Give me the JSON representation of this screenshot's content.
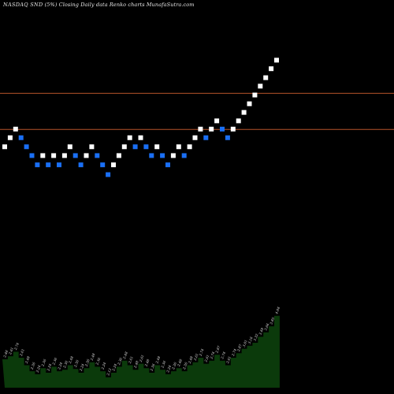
{
  "chart_data": {
    "type": "renko",
    "title": "NASDAQ SND",
    "title_suffix": "Closing Daily data Renko charts MunafaSutra.com",
    "title_sep": "(5%)",
    "bricks": [
      {
        "v": 2.48,
        "dir": "up"
      },
      {
        "v": 2.61,
        "dir": "up"
      },
      {
        "v": 2.74,
        "dir": "up"
      },
      {
        "v": 2.61,
        "dir": "down"
      },
      {
        "v": 2.48,
        "dir": "down"
      },
      {
        "v": 2.36,
        "dir": "down"
      },
      {
        "v": 2.24,
        "dir": "down"
      },
      {
        "v": 2.36,
        "dir": "up"
      },
      {
        "v": 2.24,
        "dir": "down"
      },
      {
        "v": 2.36,
        "dir": "up"
      },
      {
        "v": 2.24,
        "dir": "down"
      },
      {
        "v": 2.36,
        "dir": "up"
      },
      {
        "v": 2.48,
        "dir": "up"
      },
      {
        "v": 2.36,
        "dir": "down"
      },
      {
        "v": 2.24,
        "dir": "down"
      },
      {
        "v": 2.36,
        "dir": "up"
      },
      {
        "v": 2.48,
        "dir": "up"
      },
      {
        "v": 2.36,
        "dir": "down"
      },
      {
        "v": 2.24,
        "dir": "down"
      },
      {
        "v": 2.12,
        "dir": "down"
      },
      {
        "v": 2.24,
        "dir": "up"
      },
      {
        "v": 2.36,
        "dir": "up"
      },
      {
        "v": 2.48,
        "dir": "up"
      },
      {
        "v": 2.61,
        "dir": "up"
      },
      {
        "v": 2.48,
        "dir": "down"
      },
      {
        "v": 2.61,
        "dir": "up"
      },
      {
        "v": 2.48,
        "dir": "down"
      },
      {
        "v": 2.36,
        "dir": "down"
      },
      {
        "v": 2.48,
        "dir": "up"
      },
      {
        "v": 2.36,
        "dir": "down"
      },
      {
        "v": 2.24,
        "dir": "down"
      },
      {
        "v": 2.36,
        "dir": "up"
      },
      {
        "v": 2.48,
        "dir": "up"
      },
      {
        "v": 2.36,
        "dir": "down"
      },
      {
        "v": 2.48,
        "dir": "up"
      },
      {
        "v": 2.61,
        "dir": "up"
      },
      {
        "v": 2.74,
        "dir": "up"
      },
      {
        "v": 2.61,
        "dir": "down"
      },
      {
        "v": 2.74,
        "dir": "up"
      },
      {
        "v": 2.87,
        "dir": "up"
      },
      {
        "v": 2.74,
        "dir": "down"
      },
      {
        "v": 2.61,
        "dir": "down"
      },
      {
        "v": 2.74,
        "dir": "up"
      },
      {
        "v": 2.87,
        "dir": "up"
      },
      {
        "v": 3.01,
        "dir": "up"
      },
      {
        "v": 3.16,
        "dir": "up"
      },
      {
        "v": 3.32,
        "dir": "up"
      },
      {
        "v": 3.49,
        "dir": "up"
      },
      {
        "v": 3.66,
        "dir": "up"
      },
      {
        "v": 3.85,
        "dir": "up"
      },
      {
        "v": 4.04,
        "dir": "up"
      }
    ],
    "ylim": [
      1.5,
      5.2
    ],
    "hlines": [
      3.36,
      2.74
    ],
    "volume_labels": [
      "2.48",
      "2.61",
      "2.74",
      "2.61",
      "2.48",
      "2.36",
      "2.24",
      "2.36",
      "2.24",
      "2.36",
      "2.24",
      "2.36",
      "2.48",
      "2.36",
      "2.24",
      "2.36",
      "2.48",
      "2.36",
      "2.24",
      "2.12",
      "2.24",
      "2.36",
      "2.48",
      "2.61",
      "2.48",
      "2.61",
      "2.48",
      "2.36",
      "2.48",
      "2.36",
      "2.24",
      "2.36",
      "2.48",
      "2.36",
      "2.48",
      "2.61",
      "2.74",
      "2.61",
      "2.74",
      "2.87",
      "2.74",
      "2.61",
      "2.74",
      "2.87",
      "3.01",
      "3.16",
      "3.32",
      "3.49",
      "3.66",
      "3.85",
      "4.04"
    ],
    "volume_values": [
      38,
      42,
      48,
      40,
      30,
      22,
      18,
      26,
      20,
      28,
      22,
      24,
      30,
      25,
      20,
      26,
      34,
      28,
      22,
      14,
      20,
      28,
      36,
      30,
      24,
      32,
      26,
      20,
      30,
      24,
      18,
      22,
      26,
      22,
      30,
      34,
      40,
      32,
      36,
      44,
      36,
      30,
      40,
      46,
      52,
      56,
      60,
      68,
      74,
      82,
      96
    ],
    "colors": {
      "up": "#ffffff",
      "down": "#1a6ff5",
      "hline": "#b5522a",
      "volume": "#0b3a0b",
      "text": "#e0e0e0"
    }
  }
}
